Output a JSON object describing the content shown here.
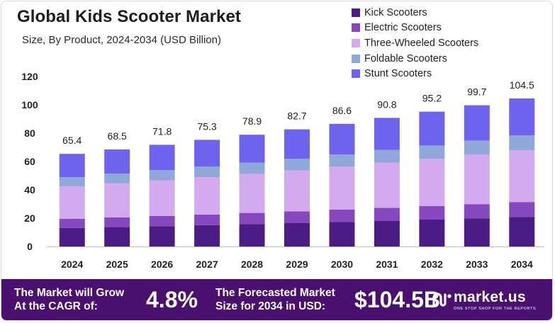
{
  "title": "Global Kids Scooter Market",
  "subtitle": "Size, By Product, 2024-2034 (USD Billion)",
  "chart_data": {
    "type": "bar",
    "stacked": true,
    "categories": [
      "2024",
      "2025",
      "2026",
      "2027",
      "2028",
      "2029",
      "2030",
      "2031",
      "2032",
      "2033",
      "2034"
    ],
    "totals": [
      65.4,
      68.5,
      71.8,
      75.3,
      78.9,
      82.7,
      86.6,
      90.8,
      95.2,
      99.7,
      104.5
    ],
    "total_labels": [
      "65.4",
      "68.5",
      "71.8",
      "75.3",
      "78.9",
      "82.7",
      "86.6",
      "90.8",
      "95.2",
      "99.7",
      "104.5"
    ],
    "series": [
      {
        "name": "Kick Scooters",
        "color": "#4b1d84",
        "values": [
          13.1,
          13.7,
          14.4,
          15.1,
          15.8,
          16.5,
          17.3,
          18.2,
          19.0,
          19.9,
          20.9
        ]
      },
      {
        "name": "Electric Scooters",
        "color": "#8747bf",
        "values": [
          6.5,
          6.9,
          7.2,
          7.5,
          7.9,
          8.3,
          8.7,
          9.1,
          9.5,
          10.0,
          10.5
        ]
      },
      {
        "name": "Three-Wheeled Scooters",
        "color": "#d3aaee",
        "values": [
          22.9,
          24.0,
          25.1,
          26.4,
          27.6,
          28.9,
          30.3,
          31.8,
          33.3,
          34.9,
          36.6
        ]
      },
      {
        "name": "Foldable Scooters",
        "color": "#8fa7d9",
        "values": [
          6.5,
          6.9,
          7.2,
          7.5,
          7.9,
          8.3,
          8.7,
          9.1,
          9.5,
          10.0,
          10.5
        ]
      },
      {
        "name": "Stunt Scooters",
        "color": "#6e63ee",
        "values": [
          16.4,
          17.0,
          17.9,
          18.8,
          19.7,
          20.7,
          21.6,
          22.6,
          23.9,
          24.9,
          26.0
        ]
      }
    ],
    "yticks": [
      0,
      20,
      40,
      60,
      80,
      100,
      120
    ],
    "ylim": [
      0,
      120
    ],
    "legend_position": "top-right",
    "grid": false
  },
  "footer": {
    "cagr_text_line1": "The Market will Grow",
    "cagr_text_line2": "At the CAGR of:",
    "cagr_value": "4.8%",
    "forecast_text_line1": "The Forecasted Market",
    "forecast_text_line2": "Size for 2034 in USD:",
    "forecast_value": "$104.5B",
    "brand_name": "market.us",
    "brand_tagline": "ONE STOP SHOP FOR THE REPORTS"
  }
}
